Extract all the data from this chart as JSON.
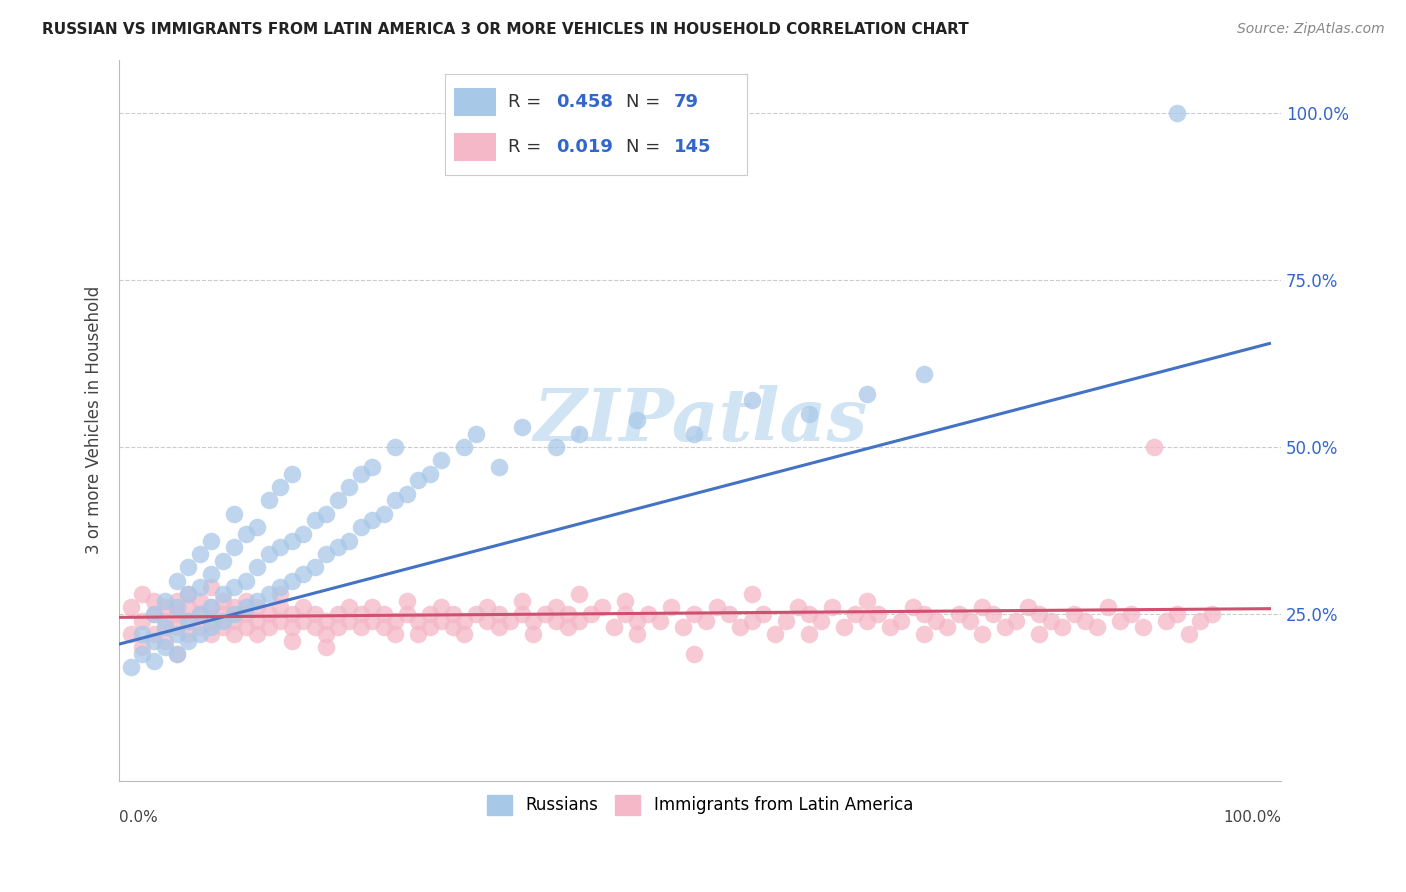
{
  "title": "RUSSIAN VS IMMIGRANTS FROM LATIN AMERICA 3 OR MORE VEHICLES IN HOUSEHOLD CORRELATION CHART",
  "source": "Source: ZipAtlas.com",
  "ylabel": "3 or more Vehicles in Household",
  "ytick_labels": [
    "25.0%",
    "50.0%",
    "75.0%",
    "100.0%"
  ],
  "ytick_values": [
    0.25,
    0.5,
    0.75,
    1.0
  ],
  "legend_bottom": [
    "Russians",
    "Immigrants from Latin America"
  ],
  "russian_color": "#a8c8e8",
  "latin_color": "#f4b8c8",
  "russian_line_color": "#4472c4",
  "latin_line_color": "#d05070",
  "watermark_text": "ZIPatlas",
  "watermark_color": "#d0e4f4",
  "title_fontsize": 11,
  "source_fontsize": 10,
  "russian_points": [
    [
      0.01,
      0.17
    ],
    [
      0.02,
      0.19
    ],
    [
      0.02,
      0.22
    ],
    [
      0.03,
      0.18
    ],
    [
      0.03,
      0.21
    ],
    [
      0.03,
      0.25
    ],
    [
      0.04,
      0.2
    ],
    [
      0.04,
      0.23
    ],
    [
      0.04,
      0.27
    ],
    [
      0.05,
      0.19
    ],
    [
      0.05,
      0.22
    ],
    [
      0.05,
      0.26
    ],
    [
      0.05,
      0.3
    ],
    [
      0.06,
      0.21
    ],
    [
      0.06,
      0.24
    ],
    [
      0.06,
      0.28
    ],
    [
      0.06,
      0.32
    ],
    [
      0.07,
      0.22
    ],
    [
      0.07,
      0.25
    ],
    [
      0.07,
      0.29
    ],
    [
      0.07,
      0.34
    ],
    [
      0.08,
      0.23
    ],
    [
      0.08,
      0.26
    ],
    [
      0.08,
      0.31
    ],
    [
      0.08,
      0.36
    ],
    [
      0.09,
      0.24
    ],
    [
      0.09,
      0.28
    ],
    [
      0.09,
      0.33
    ],
    [
      0.1,
      0.25
    ],
    [
      0.1,
      0.29
    ],
    [
      0.1,
      0.35
    ],
    [
      0.1,
      0.4
    ],
    [
      0.11,
      0.26
    ],
    [
      0.11,
      0.3
    ],
    [
      0.11,
      0.37
    ],
    [
      0.12,
      0.27
    ],
    [
      0.12,
      0.32
    ],
    [
      0.12,
      0.38
    ],
    [
      0.13,
      0.28
    ],
    [
      0.13,
      0.34
    ],
    [
      0.13,
      0.42
    ],
    [
      0.14,
      0.29
    ],
    [
      0.14,
      0.35
    ],
    [
      0.14,
      0.44
    ],
    [
      0.15,
      0.3
    ],
    [
      0.15,
      0.36
    ],
    [
      0.15,
      0.46
    ],
    [
      0.16,
      0.31
    ],
    [
      0.16,
      0.37
    ],
    [
      0.17,
      0.32
    ],
    [
      0.17,
      0.39
    ],
    [
      0.18,
      0.34
    ],
    [
      0.18,
      0.4
    ],
    [
      0.19,
      0.35
    ],
    [
      0.19,
      0.42
    ],
    [
      0.2,
      0.36
    ],
    [
      0.2,
      0.44
    ],
    [
      0.21,
      0.38
    ],
    [
      0.21,
      0.46
    ],
    [
      0.22,
      0.39
    ],
    [
      0.22,
      0.47
    ],
    [
      0.23,
      0.4
    ],
    [
      0.24,
      0.42
    ],
    [
      0.24,
      0.5
    ],
    [
      0.25,
      0.43
    ],
    [
      0.26,
      0.45
    ],
    [
      0.27,
      0.46
    ],
    [
      0.28,
      0.48
    ],
    [
      0.3,
      0.5
    ],
    [
      0.31,
      0.52
    ],
    [
      0.33,
      0.47
    ],
    [
      0.35,
      0.53
    ],
    [
      0.38,
      0.5
    ],
    [
      0.4,
      0.52
    ],
    [
      0.45,
      0.54
    ],
    [
      0.5,
      0.52
    ],
    [
      0.55,
      0.57
    ],
    [
      0.6,
      0.55
    ],
    [
      0.65,
      0.58
    ],
    [
      0.7,
      0.61
    ],
    [
      0.92,
      1.0
    ]
  ],
  "latin_points": [
    [
      0.01,
      0.26
    ],
    [
      0.01,
      0.22
    ],
    [
      0.02,
      0.24
    ],
    [
      0.02,
      0.28
    ],
    [
      0.02,
      0.2
    ],
    [
      0.03,
      0.25
    ],
    [
      0.03,
      0.22
    ],
    [
      0.03,
      0.27
    ],
    [
      0.04,
      0.24
    ],
    [
      0.04,
      0.26
    ],
    [
      0.04,
      0.21
    ],
    [
      0.05,
      0.25
    ],
    [
      0.05,
      0.23
    ],
    [
      0.05,
      0.27
    ],
    [
      0.05,
      0.19
    ],
    [
      0.06,
      0.24
    ],
    [
      0.06,
      0.26
    ],
    [
      0.06,
      0.22
    ],
    [
      0.06,
      0.28
    ],
    [
      0.07,
      0.25
    ],
    [
      0.07,
      0.23
    ],
    [
      0.07,
      0.27
    ],
    [
      0.08,
      0.24
    ],
    [
      0.08,
      0.26
    ],
    [
      0.08,
      0.22
    ],
    [
      0.08,
      0.29
    ],
    [
      0.09,
      0.25
    ],
    [
      0.09,
      0.23
    ],
    [
      0.09,
      0.27
    ],
    [
      0.1,
      0.24
    ],
    [
      0.1,
      0.26
    ],
    [
      0.1,
      0.22
    ],
    [
      0.11,
      0.25
    ],
    [
      0.11,
      0.23
    ],
    [
      0.11,
      0.27
    ],
    [
      0.12,
      0.24
    ],
    [
      0.12,
      0.26
    ],
    [
      0.12,
      0.22
    ],
    [
      0.13,
      0.25
    ],
    [
      0.13,
      0.23
    ],
    [
      0.14,
      0.24
    ],
    [
      0.14,
      0.26
    ],
    [
      0.14,
      0.28
    ],
    [
      0.15,
      0.25
    ],
    [
      0.15,
      0.23
    ],
    [
      0.15,
      0.21
    ],
    [
      0.16,
      0.24
    ],
    [
      0.16,
      0.26
    ],
    [
      0.17,
      0.25
    ],
    [
      0.17,
      0.23
    ],
    [
      0.18,
      0.24
    ],
    [
      0.18,
      0.22
    ],
    [
      0.18,
      0.2
    ],
    [
      0.19,
      0.25
    ],
    [
      0.19,
      0.23
    ],
    [
      0.2,
      0.24
    ],
    [
      0.2,
      0.26
    ],
    [
      0.21,
      0.25
    ],
    [
      0.21,
      0.23
    ],
    [
      0.22,
      0.24
    ],
    [
      0.22,
      0.26
    ],
    [
      0.23,
      0.25
    ],
    [
      0.23,
      0.23
    ],
    [
      0.24,
      0.24
    ],
    [
      0.24,
      0.22
    ],
    [
      0.25,
      0.25
    ],
    [
      0.25,
      0.27
    ],
    [
      0.26,
      0.24
    ],
    [
      0.26,
      0.22
    ],
    [
      0.27,
      0.25
    ],
    [
      0.27,
      0.23
    ],
    [
      0.28,
      0.24
    ],
    [
      0.28,
      0.26
    ],
    [
      0.29,
      0.25
    ],
    [
      0.29,
      0.23
    ],
    [
      0.3,
      0.24
    ],
    [
      0.3,
      0.22
    ],
    [
      0.31,
      0.25
    ],
    [
      0.32,
      0.24
    ],
    [
      0.32,
      0.26
    ],
    [
      0.33,
      0.23
    ],
    [
      0.33,
      0.25
    ],
    [
      0.34,
      0.24
    ],
    [
      0.35,
      0.25
    ],
    [
      0.35,
      0.27
    ],
    [
      0.36,
      0.24
    ],
    [
      0.36,
      0.22
    ],
    [
      0.37,
      0.25
    ],
    [
      0.38,
      0.24
    ],
    [
      0.38,
      0.26
    ],
    [
      0.39,
      0.25
    ],
    [
      0.39,
      0.23
    ],
    [
      0.4,
      0.24
    ],
    [
      0.4,
      0.28
    ],
    [
      0.41,
      0.25
    ],
    [
      0.42,
      0.26
    ],
    [
      0.43,
      0.23
    ],
    [
      0.44,
      0.25
    ],
    [
      0.44,
      0.27
    ],
    [
      0.45,
      0.24
    ],
    [
      0.45,
      0.22
    ],
    [
      0.46,
      0.25
    ],
    [
      0.47,
      0.24
    ],
    [
      0.48,
      0.26
    ],
    [
      0.49,
      0.23
    ],
    [
      0.5,
      0.25
    ],
    [
      0.5,
      0.19
    ],
    [
      0.51,
      0.24
    ],
    [
      0.52,
      0.26
    ],
    [
      0.53,
      0.25
    ],
    [
      0.54,
      0.23
    ],
    [
      0.55,
      0.24
    ],
    [
      0.55,
      0.28
    ],
    [
      0.56,
      0.25
    ],
    [
      0.57,
      0.22
    ],
    [
      0.58,
      0.24
    ],
    [
      0.59,
      0.26
    ],
    [
      0.6,
      0.25
    ],
    [
      0.6,
      0.22
    ],
    [
      0.61,
      0.24
    ],
    [
      0.62,
      0.26
    ],
    [
      0.63,
      0.23
    ],
    [
      0.64,
      0.25
    ],
    [
      0.65,
      0.24
    ],
    [
      0.65,
      0.27
    ],
    [
      0.66,
      0.25
    ],
    [
      0.67,
      0.23
    ],
    [
      0.68,
      0.24
    ],
    [
      0.69,
      0.26
    ],
    [
      0.7,
      0.25
    ],
    [
      0.7,
      0.22
    ],
    [
      0.71,
      0.24
    ],
    [
      0.72,
      0.23
    ],
    [
      0.73,
      0.25
    ],
    [
      0.74,
      0.24
    ],
    [
      0.75,
      0.26
    ],
    [
      0.75,
      0.22
    ],
    [
      0.76,
      0.25
    ],
    [
      0.77,
      0.23
    ],
    [
      0.78,
      0.24
    ],
    [
      0.79,
      0.26
    ],
    [
      0.8,
      0.25
    ],
    [
      0.8,
      0.22
    ],
    [
      0.81,
      0.24
    ],
    [
      0.82,
      0.23
    ],
    [
      0.83,
      0.25
    ],
    [
      0.84,
      0.24
    ],
    [
      0.85,
      0.23
    ],
    [
      0.86,
      0.26
    ],
    [
      0.87,
      0.24
    ],
    [
      0.88,
      0.25
    ],
    [
      0.89,
      0.23
    ],
    [
      0.9,
      0.5
    ],
    [
      0.91,
      0.24
    ],
    [
      0.92,
      0.25
    ],
    [
      0.93,
      0.22
    ],
    [
      0.94,
      0.24
    ],
    [
      0.95,
      0.25
    ]
  ]
}
